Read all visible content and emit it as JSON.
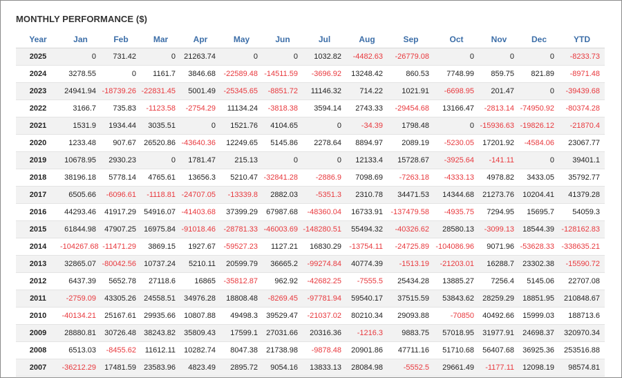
{
  "title": "MONTHLY PERFORMANCE ($)",
  "colors": {
    "header": "#3c6ea8",
    "negative": "#e8383d",
    "text": "#222222"
  },
  "columns": [
    "Year",
    "Jan",
    "Feb",
    "Mar",
    "Apr",
    "May",
    "Jun",
    "Jul",
    "Aug",
    "Sep",
    "Oct",
    "Nov",
    "Dec",
    "YTD"
  ],
  "rows": [
    [
      "2025",
      "0",
      "731.42",
      "0",
      "21263.74",
      "0",
      "0",
      "1032.82",
      "-4482.63",
      "-26779.08",
      "0",
      "0",
      "0",
      "-8233.73"
    ],
    [
      "2024",
      "3278.55",
      "0",
      "1161.7",
      "3846.68",
      "-22589.48",
      "-14511.59",
      "-3696.92",
      "13248.42",
      "860.53",
      "7748.99",
      "859.75",
      "821.89",
      "-8971.48"
    ],
    [
      "2023",
      "24941.94",
      "-18739.26",
      "-22831.45",
      "5001.49",
      "-25345.65",
      "-8851.72",
      "11146.32",
      "714.22",
      "1021.91",
      "-6698.95",
      "201.47",
      "0",
      "-39439.68"
    ],
    [
      "2022",
      "3166.7",
      "735.83",
      "-1123.58",
      "-2754.29",
      "11134.24",
      "-3818.38",
      "3594.14",
      "2743.33",
      "-29454.68",
      "13166.47",
      "-2813.14",
      "-74950.92",
      "-80374.28"
    ],
    [
      "2021",
      "1531.9",
      "1934.44",
      "3035.51",
      "0",
      "1521.76",
      "4104.65",
      "0",
      "-34.39",
      "1798.48",
      "0",
      "-15936.63",
      "-19826.12",
      "-21870.4"
    ],
    [
      "2020",
      "1233.48",
      "907.67",
      "26520.86",
      "-43640.36",
      "12249.65",
      "5145.86",
      "2278.64",
      "8894.97",
      "2089.19",
      "-5230.05",
      "17201.92",
      "-4584.06",
      "23067.77"
    ],
    [
      "2019",
      "10678.95",
      "2930.23",
      "0",
      "1781.47",
      "215.13",
      "0",
      "0",
      "12133.4",
      "15728.67",
      "-3925.64",
      "-141.11",
      "0",
      "39401.1"
    ],
    [
      "2018",
      "38196.18",
      "5778.14",
      "4765.61",
      "13656.3",
      "5210.47",
      "-32841.28",
      "-2886.9",
      "7098.69",
      "-7263.18",
      "-4333.13",
      "4978.82",
      "3433.05",
      "35792.77"
    ],
    [
      "2017",
      "6505.66",
      "-6096.61",
      "-1118.81",
      "-24707.05",
      "-13339.8",
      "2882.03",
      "-5351.3",
      "2310.78",
      "34471.53",
      "14344.68",
      "21273.76",
      "10204.41",
      "41379.28"
    ],
    [
      "2016",
      "44293.46",
      "41917.29",
      "54916.07",
      "-41403.68",
      "37399.29",
      "67987.68",
      "-48360.04",
      "16733.91",
      "-137479.58",
      "-4935.75",
      "7294.95",
      "15695.7",
      "54059.3"
    ],
    [
      "2015",
      "61844.98",
      "47907.25",
      "16975.84",
      "-91018.46",
      "-28781.33",
      "-46003.69",
      "-148280.51",
      "55494.32",
      "-40326.62",
      "28580.13",
      "-3099.13",
      "18544.39",
      "-128162.83"
    ],
    [
      "2014",
      "-104267.68",
      "-11471.29",
      "3869.15",
      "1927.67",
      "-59527.23",
      "1127.21",
      "16830.29",
      "-13754.11",
      "-24725.89",
      "-104086.96",
      "9071.96",
      "-53628.33",
      "-338635.21"
    ],
    [
      "2013",
      "32865.07",
      "-80042.56",
      "10737.24",
      "5210.11",
      "20599.79",
      "36665.2",
      "-99274.84",
      "40774.39",
      "-1513.19",
      "-21203.01",
      "16288.7",
      "23302.38",
      "-15590.72"
    ],
    [
      "2012",
      "6437.39",
      "5652.78",
      "27118.6",
      "16865",
      "-35812.87",
      "962.92",
      "-42682.25",
      "-7555.5",
      "25434.28",
      "13885.27",
      "7256.4",
      "5145.06",
      "22707.08"
    ],
    [
      "2011",
      "-2759.09",
      "43305.26",
      "24558.51",
      "34976.28",
      "18808.48",
      "-8269.45",
      "-97781.94",
      "59540.17",
      "37515.59",
      "53843.62",
      "28259.29",
      "18851.95",
      "210848.67"
    ],
    [
      "2010",
      "-40134.21",
      "25167.61",
      "29935.66",
      "10807.88",
      "49498.3",
      "39529.47",
      "-21037.02",
      "80210.34",
      "29093.88",
      "-70850",
      "40492.66",
      "15999.03",
      "188713.6"
    ],
    [
      "2009",
      "28880.81",
      "30726.48",
      "38243.82",
      "35809.43",
      "17599.1",
      "27031.66",
      "20316.36",
      "-1216.3",
      "9883.75",
      "57018.95",
      "31977.91",
      "24698.37",
      "320970.34"
    ],
    [
      "2008",
      "6513.03",
      "-8455.62",
      "11612.11",
      "10282.74",
      "8047.38",
      "21738.98",
      "-9878.48",
      "20901.86",
      "47711.16",
      "51710.68",
      "56407.68",
      "36925.36",
      "253516.88"
    ],
    [
      "2007",
      "-36212.29",
      "17481.59",
      "23583.96",
      "4823.49",
      "2895.72",
      "9054.16",
      "13833.13",
      "28084.98",
      "-5552.5",
      "29661.49",
      "-1177.11",
      "12098.19",
      "98574.81"
    ]
  ]
}
